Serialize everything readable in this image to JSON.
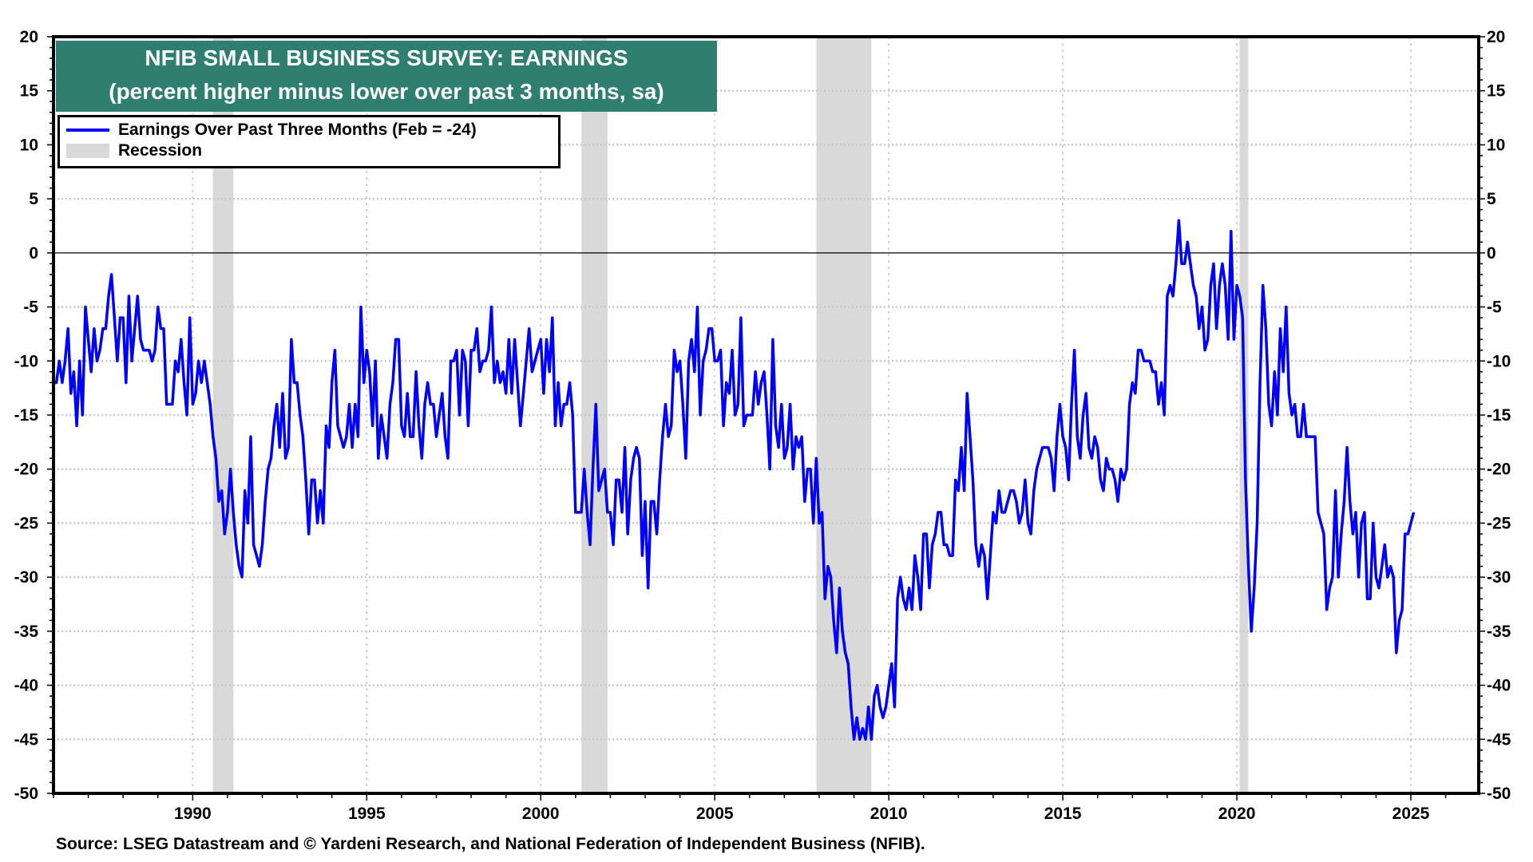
{
  "title": {
    "line1": "NFIB SMALL BUSINESS SURVEY: EARNINGS",
    "line2": "(percent higher minus lower over past 3 months, sa)"
  },
  "legend": {
    "series_label": "Earnings Over Past Three Months (Feb = -24)",
    "recession_label": "Recession"
  },
  "footer": "Source: LSEG Datastream and © Yardeni Research, and National Federation of Independent Business (NFIB).",
  "colors": {
    "series": "#0000ff",
    "recession": "#d9d9d9",
    "title_bg": "#2f7f71"
  },
  "chart_data": {
    "type": "line",
    "title": "NFIB SMALL BUSINESS SURVEY: EARNINGS",
    "subtitle": "(percent higher minus lower over past 3 months, sa)",
    "xlabel": "",
    "ylabel": "",
    "frequency": "monthly",
    "start": [
      1986,
      1
    ],
    "xlim": [
      1986.0,
      2026.95
    ],
    "ylim": [
      -50,
      20
    ],
    "grid": true,
    "legend_position": "top-left",
    "xticks": [
      "1990",
      "1995",
      "2000",
      "2005",
      "2010",
      "2015",
      "2020",
      "2025"
    ],
    "xtick_values": [
      1990,
      1995,
      2000,
      2005,
      2010,
      2015,
      2020,
      2025
    ],
    "yticks": [
      "20",
      "15",
      "10",
      "5",
      "0",
      "-5",
      "-10",
      "-15",
      "-20",
      "-25",
      "-30",
      "-35",
      "-40",
      "-45",
      "-50"
    ],
    "ytick_values": [
      20,
      15,
      10,
      5,
      0,
      -5,
      -10,
      -15,
      -20,
      -25,
      -30,
      -35,
      -40,
      -45,
      -50
    ],
    "recessions": [
      [
        1990.58,
        1991.17
      ],
      [
        2001.17,
        2001.92
      ],
      [
        2007.92,
        2009.5
      ],
      [
        2020.08,
        2020.33
      ]
    ],
    "series": [
      {
        "name": "Earnings Over Past Three Months (Feb = -24)",
        "values": [
          -12,
          -12,
          -10,
          -12,
          -10,
          -7,
          -13,
          -11,
          -16,
          -10,
          -15,
          -5,
          -8,
          -11,
          -7,
          -10,
          -9,
          -7,
          -7,
          -4,
          -2,
          -6,
          -10,
          -6,
          -6,
          -12,
          -4,
          -10,
          -7,
          -4,
          -8,
          -9,
          -9,
          -9,
          -10,
          -9,
          -5,
          -7,
          -7,
          -14,
          -14,
          -14,
          -10,
          -11,
          -8,
          -12,
          -15,
          -6,
          -14,
          -13,
          -10,
          -12,
          -10,
          -12,
          -14,
          -17,
          -19,
          -23,
          -22,
          -26,
          -24,
          -20,
          -24,
          -27,
          -29,
          -30,
          -22,
          -25,
          -17,
          -27,
          -28,
          -29,
          -27,
          -23,
          -20,
          -19,
          -16,
          -14,
          -18,
          -13,
          -19,
          -18,
          -8,
          -12,
          -12,
          -15,
          -17,
          -21,
          -26,
          -21,
          -21,
          -25,
          -22,
          -25,
          -16,
          -18,
          -12,
          -9,
          -16,
          -17,
          -18,
          -17,
          -14,
          -18,
          -14,
          -17,
          -5,
          -12,
          -9,
          -11,
          -16,
          -10,
          -19,
          -15,
          -17,
          -19,
          -14,
          -12,
          -8,
          -8,
          -16,
          -17,
          -13,
          -17,
          -17,
          -11,
          -16,
          -19,
          -14,
          -12,
          -14,
          -14,
          -17,
          -15,
          -13,
          -17,
          -19,
          -10,
          -10,
          -9,
          -15,
          -9,
          -10,
          -16,
          -9,
          -9,
          -7,
          -11,
          -10,
          -10,
          -9,
          -5,
          -12,
          -10,
          -12,
          -11,
          -13,
          -8,
          -13,
          -8,
          -12,
          -16,
          -13,
          -10,
          -7,
          -11,
          -10,
          -9,
          -8,
          -13,
          -8,
          -11,
          -6,
          -16,
          -12,
          -16,
          -14,
          -14,
          -12,
          -15,
          -24,
          -24,
          -24,
          -20,
          -24,
          -27,
          -20,
          -14,
          -22,
          -21,
          -20,
          -24,
          -24,
          -27,
          -21,
          -21,
          -24,
          -18,
          -26,
          -21,
          -19,
          -18,
          -19,
          -28,
          -23,
          -31,
          -23,
          -23,
          -26,
          -21,
          -17,
          -14,
          -17,
          -16,
          -9,
          -11,
          -10,
          -14,
          -19,
          -10,
          -8,
          -11,
          -5,
          -15,
          -10,
          -9,
          -7,
          -7,
          -10,
          -10,
          -9,
          -16,
          -12,
          -13,
          -9,
          -15,
          -14,
          -6,
          -16,
          -15,
          -15,
          -15,
          -11,
          -14,
          -12,
          -11,
          -15,
          -20,
          -8,
          -16,
          -18,
          -14,
          -19,
          -18,
          -14,
          -20,
          -17,
          -18,
          -17,
          -23,
          -20,
          -20,
          -25,
          -19,
          -25,
          -24,
          -32,
          -29,
          -30,
          -34,
          -37,
          -31,
          -35,
          -37,
          -38,
          -42,
          -45,
          -43,
          -45,
          -44,
          -45,
          -42,
          -45,
          -41,
          -40,
          -42,
          -43,
          -42,
          -40,
          -38,
          -42,
          -32,
          -30,
          -32,
          -33,
          -31,
          -33,
          -28,
          -30,
          -33,
          -26,
          -26,
          -31,
          -27,
          -26,
          -24,
          -24,
          -27,
          -27,
          -28,
          -28,
          -21,
          -22,
          -18,
          -22,
          -13,
          -17,
          -21,
          -27,
          -29,
          -27,
          -28,
          -32,
          -28,
          -24,
          -25,
          -22,
          -24,
          -24,
          -23,
          -22,
          -22,
          -23,
          -25,
          -24,
          -21,
          -25,
          -26,
          -22,
          -20,
          -19,
          -18,
          -18,
          -18,
          -19,
          -22,
          -17,
          -14,
          -17,
          -18,
          -21,
          -14,
          -9,
          -17,
          -19,
          -15,
          -13,
          -18,
          -19,
          -17,
          -18,
          -21,
          -22,
          -19,
          -20,
          -20,
          -21,
          -23,
          -20,
          -21,
          -20,
          -14,
          -12,
          -13,
          -9,
          -9,
          -10,
          -10,
          -10,
          -11,
          -11,
          -14,
          -12,
          -15,
          -4,
          -3,
          -4,
          -1,
          3,
          -1,
          -1,
          1,
          -1,
          -3,
          -4,
          -7,
          -5,
          -9,
          -8,
          -3,
          -1,
          -7,
          -3,
          -1,
          -3,
          -8,
          2,
          -8,
          -3,
          -4,
          -6,
          -21,
          -29,
          -35,
          -31,
          -25,
          -12,
          -3,
          -7,
          -14,
          -16,
          -11,
          -15,
          -7,
          -11,
          -5,
          -13,
          -15,
          -14,
          -17,
          -17,
          -14,
          -17,
          -17,
          -17,
          -17,
          -24,
          -25,
          -26,
          -33,
          -31,
          -30,
          -22,
          -30,
          -26,
          -23,
          -18,
          -23,
          -26,
          -24,
          -30,
          -25,
          -24,
          -32,
          -32,
          -25,
          -30,
          -31,
          -29,
          -27,
          -30,
          -29,
          -30,
          -37,
          -34,
          -33,
          -26,
          -26,
          -25,
          -24
        ]
      }
    ]
  }
}
